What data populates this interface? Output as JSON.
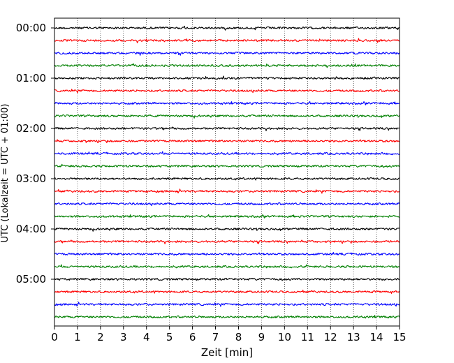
{
  "chart_data": {
    "type": "line",
    "title": "",
    "xlabel": "Zeit  [min]",
    "ylabel": "UTC (Lokalzeit = UTC + 01:00)",
    "xlim": [
      0,
      15
    ],
    "x_ticks": [
      0,
      1,
      2,
      3,
      4,
      5,
      6,
      7,
      8,
      9,
      10,
      11,
      12,
      13,
      14,
      15
    ],
    "x_tick_labels": [
      "0",
      "1",
      "2",
      "3",
      "4",
      "5",
      "6",
      "7",
      "8",
      "9",
      "10",
      "11",
      "12",
      "13",
      "14",
      "15"
    ],
    "y_tick_labels": [
      "00:00",
      "01:00",
      "02:00",
      "03:00",
      "04:00",
      "05:00"
    ],
    "grid": "vertical dotted",
    "minutes_per_trace": 15,
    "traces_per_hour": 4,
    "trace_count": 24,
    "trace_colors": [
      "#000000",
      "#ff0000",
      "#0000ff",
      "#008000"
    ]
  }
}
